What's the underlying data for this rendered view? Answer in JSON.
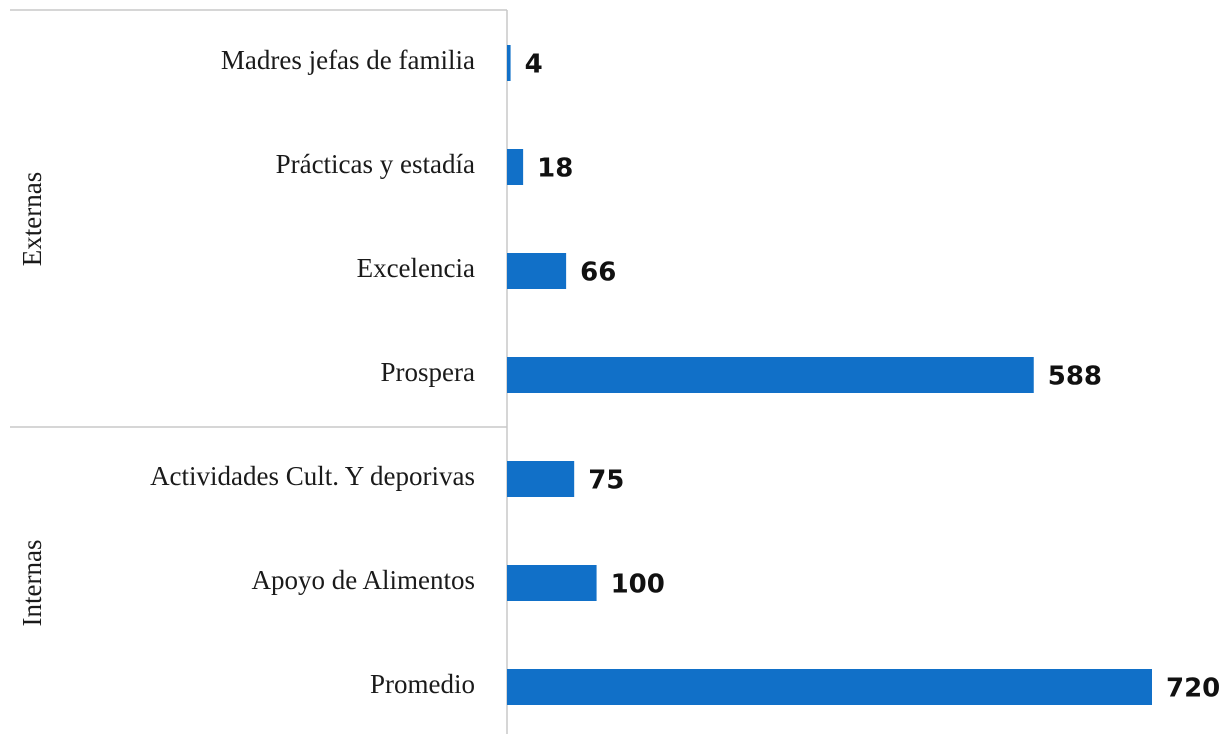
{
  "chart_data": {
    "type": "bar",
    "orientation": "horizontal",
    "color": "#1170c8",
    "groups": [
      {
        "name": "Externas",
        "categories": [
          "Madres jefas de familia",
          "Prácticas y estadía",
          "Excelencia",
          "Prospera"
        ],
        "values": [
          4,
          18,
          66,
          588
        ]
      },
      {
        "name": "Internas",
        "categories": [
          "Actividades Cult. Y deporivas",
          "Apoyo de Alimentos",
          "Promedio"
        ],
        "values": [
          75,
          100,
          720
        ]
      }
    ]
  }
}
